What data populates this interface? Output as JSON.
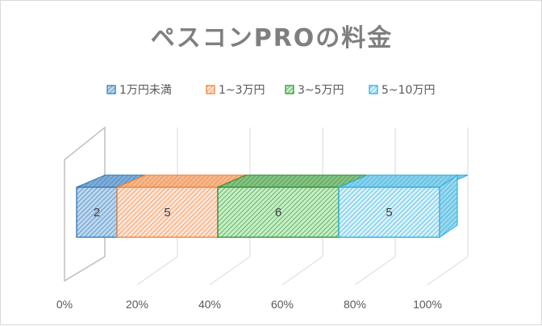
{
  "chart_data": {
    "type": "bar",
    "orientation": "horizontal",
    "stacked": "percent",
    "three_d": true,
    "title": "ペスコンPROの料金",
    "categories": [
      ""
    ],
    "series": [
      {
        "name": "1万円未満",
        "values": [
          2
        ],
        "color": "#2e75b6",
        "fill": "#bdd7ee"
      },
      {
        "name": "1~3万円",
        "values": [
          5
        ],
        "color": "#ed7d31",
        "fill": "#f8cbad"
      },
      {
        "name": "3~5万円",
        "values": [
          6
        ],
        "color": "#2f8a2f",
        "fill": "#a9e5a9"
      },
      {
        "name": "5~10万円",
        "values": [
          5
        ],
        "color": "#28a8d8",
        "fill": "#bde8f8"
      }
    ],
    "x_ticks": [
      "0%",
      "20%",
      "40%",
      "60%",
      "80%",
      "100%"
    ],
    "xlim": [
      0,
      1
    ],
    "grid": true,
    "legend": "top",
    "data_labels": [
      "2",
      "5",
      "6",
      "5"
    ]
  }
}
